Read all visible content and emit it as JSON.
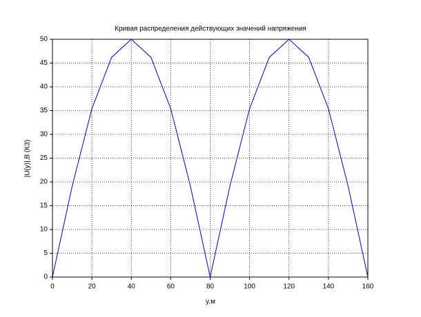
{
  "chart_data": {
    "type": "line",
    "title": "Кривая распределения действующих значений напряжения",
    "x_label": "y,м",
    "y_label": "|U(y)|,B (КЗ)",
    "x": [
      0,
      10,
      20,
      30,
      40,
      50,
      60,
      70,
      80,
      90,
      100,
      110,
      120,
      130,
      140,
      150,
      160
    ],
    "series": [
      {
        "name": "|U(y)|",
        "color": "#0000b0",
        "values": [
          0,
          19.1,
          35.4,
          46.2,
          50,
          46.2,
          35.4,
          19.1,
          0,
          19.1,
          35.4,
          46.2,
          50,
          46.2,
          35.4,
          19.1,
          0
        ]
      }
    ],
    "xlim": [
      0,
      160
    ],
    "xticks": [
      0,
      20,
      40,
      60,
      80,
      100,
      120,
      140,
      160
    ],
    "ylim": [
      0,
      50
    ],
    "yticks": [
      0,
      5,
      10,
      15,
      20,
      25,
      30,
      35,
      40,
      45,
      50
    ],
    "grid": true
  }
}
